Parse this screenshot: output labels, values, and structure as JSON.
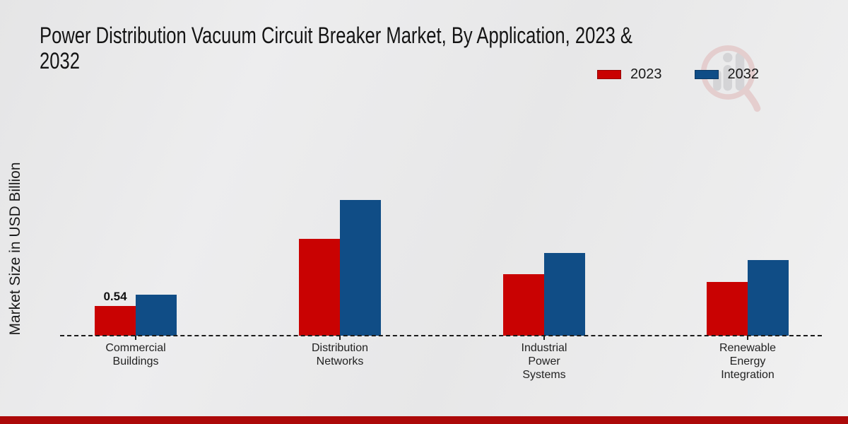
{
  "header": {
    "title_full": "Power Distribution Vacuum Circuit Breaker Market, By Application, 2023 & 2032",
    "title_lines": [
      "Power Distribution Vacuum Circuit Breaker Market, By Application, 2023 &",
      "2032"
    ]
  },
  "watermark": {
    "icon": "magnifier-bar-chart-logo",
    "ring_color": "#e0b7b7",
    "bar_color": "#c2c2c6"
  },
  "footer": {
    "color": "#ac0909"
  },
  "chart_data": {
    "type": "bar",
    "title": "Power Distribution Vacuum Circuit Breaker Market, By Application, 2023 & 2032",
    "xlabel": "",
    "ylabel": "Market Size in USD Billion",
    "categories": [
      "Commercial Buildings",
      "Distribution Networks",
      "Industrial Power Systems",
      "Renewable Energy Integration"
    ],
    "category_lines": [
      [
        "Commercial",
        "Buildings"
      ],
      [
        "Distribution",
        "Networks"
      ],
      [
        "Industrial",
        "Power",
        "Systems"
      ],
      [
        "Renewable",
        "Energy",
        "Integration"
      ]
    ],
    "series": [
      {
        "name": "2023",
        "color": "#c90202",
        "values": [
          0.54,
          1.76,
          1.12,
          0.98
        ],
        "labels": [
          "0.54",
          "",
          "",
          ""
        ]
      },
      {
        "name": "2032",
        "color": "#104d86",
        "values": [
          0.75,
          2.47,
          1.5,
          1.38
        ],
        "labels": [
          "",
          "",
          "",
          ""
        ]
      }
    ],
    "ylim": [
      0,
      3
    ],
    "grid": false,
    "legend_position": "top-right",
    "axis_line_style": "dashed",
    "annotations": [
      {
        "category": "Commercial Buildings",
        "series": "2023",
        "text": "0.54"
      }
    ]
  }
}
